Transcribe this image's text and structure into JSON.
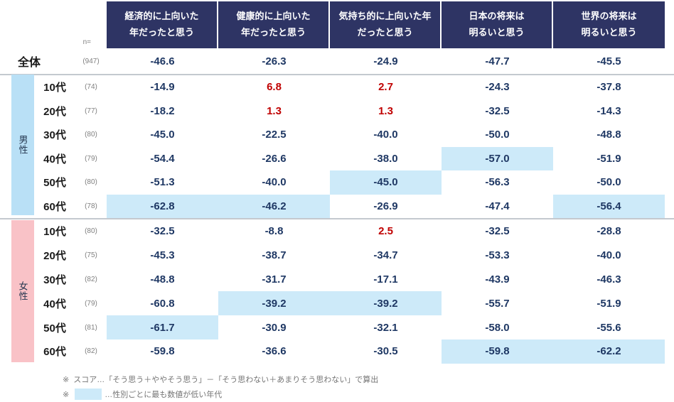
{
  "table": {
    "n_label": "n=",
    "columns": [
      {
        "label": "経済的に上向いた\n年だったと思う"
      },
      {
        "label": "健康的に上向いた\n年だったと思う"
      },
      {
        "label": "気持ち的に上向いた年\nだったと思う"
      },
      {
        "label": "日本の将来は\n明るいと思う"
      },
      {
        "label": "世界の将来は\n明るいと思う"
      }
    ],
    "total_row": {
      "label": "全体",
      "n": "(947)",
      "values": [
        "-46.6",
        "-26.3",
        "-24.9",
        "-47.7",
        "-45.5"
      ]
    },
    "groups": [
      {
        "gender": "男性",
        "rows": [
          {
            "age": "10代",
            "n": "(74)",
            "cells": [
              {
                "v": "-14.9"
              },
              {
                "v": "6.8",
                "red": true
              },
              {
                "v": "2.7",
                "red": true
              },
              {
                "v": "-24.3"
              },
              {
                "v": "-37.8"
              }
            ]
          },
          {
            "age": "20代",
            "n": "(77)",
            "cells": [
              {
                "v": "-18.2"
              },
              {
                "v": "1.3",
                "red": true
              },
              {
                "v": "1.3",
                "red": true
              },
              {
                "v": "-32.5"
              },
              {
                "v": "-14.3"
              }
            ]
          },
          {
            "age": "30代",
            "n": "(80)",
            "cells": [
              {
                "v": "-45.0"
              },
              {
                "v": "-22.5"
              },
              {
                "v": "-40.0"
              },
              {
                "v": "-50.0"
              },
              {
                "v": "-48.8"
              }
            ]
          },
          {
            "age": "40代",
            "n": "(79)",
            "cells": [
              {
                "v": "-54.4"
              },
              {
                "v": "-26.6"
              },
              {
                "v": "-38.0"
              },
              {
                "v": "-57.0",
                "hl": true
              },
              {
                "v": "-51.9"
              }
            ]
          },
          {
            "age": "50代",
            "n": "(80)",
            "cells": [
              {
                "v": "-51.3"
              },
              {
                "v": "-40.0"
              },
              {
                "v": "-45.0",
                "hl": true
              },
              {
                "v": "-56.3"
              },
              {
                "v": "-50.0"
              }
            ]
          },
          {
            "age": "60代",
            "n": "(78)",
            "cells": [
              {
                "v": "-62.8",
                "hl": true
              },
              {
                "v": "-46.2",
                "hl": true
              },
              {
                "v": "-26.9"
              },
              {
                "v": "-47.4"
              },
              {
                "v": "-56.4",
                "hl": true
              }
            ]
          }
        ]
      },
      {
        "gender": "女性",
        "rows": [
          {
            "age": "10代",
            "n": "(80)",
            "cells": [
              {
                "v": "-32.5"
              },
              {
                "v": "-8.8"
              },
              {
                "v": "2.5",
                "red": true
              },
              {
                "v": "-32.5"
              },
              {
                "v": "-28.8"
              }
            ]
          },
          {
            "age": "20代",
            "n": "(75)",
            "cells": [
              {
                "v": "-45.3"
              },
              {
                "v": "-38.7"
              },
              {
                "v": "-34.7"
              },
              {
                "v": "-53.3"
              },
              {
                "v": "-40.0"
              }
            ]
          },
          {
            "age": "30代",
            "n": "(82)",
            "cells": [
              {
                "v": "-48.8"
              },
              {
                "v": "-31.7"
              },
              {
                "v": "-17.1"
              },
              {
                "v": "-43.9"
              },
              {
                "v": "-46.3"
              }
            ]
          },
          {
            "age": "40代",
            "n": "(79)",
            "cells": [
              {
                "v": "-60.8"
              },
              {
                "v": "-39.2",
                "hl": true
              },
              {
                "v": "-39.2",
                "hl": true
              },
              {
                "v": "-55.7"
              },
              {
                "v": "-51.9"
              }
            ]
          },
          {
            "age": "50代",
            "n": "(81)",
            "cells": [
              {
                "v": "-61.7",
                "hl": true
              },
              {
                "v": "-30.9"
              },
              {
                "v": "-32.1"
              },
              {
                "v": "-58.0"
              },
              {
                "v": "-55.6"
              }
            ]
          },
          {
            "age": "60代",
            "n": "(82)",
            "cells": [
              {
                "v": "-59.8"
              },
              {
                "v": "-36.6"
              },
              {
                "v": "-30.5"
              },
              {
                "v": "-59.8",
                "hl": true
              },
              {
                "v": "-62.2",
                "hl": true
              }
            ]
          }
        ]
      }
    ],
    "footnotes": {
      "note1_mark": "※",
      "note1_text": "スコア…「そう思う＋ややそう思う」－「そう思わない＋あまりそう思わない」で算出",
      "note2_mark": "※",
      "note2_text": "…性別ごとに最も数値が低い年代"
    }
  },
  "colors": {
    "header_bg": "#2e3464",
    "value_text": "#1f3864",
    "positive_red": "#c00000",
    "lowest_highlight": "#cdeaf9",
    "male_band": "#b9e0f6",
    "female_band": "#f9c2c7"
  }
}
